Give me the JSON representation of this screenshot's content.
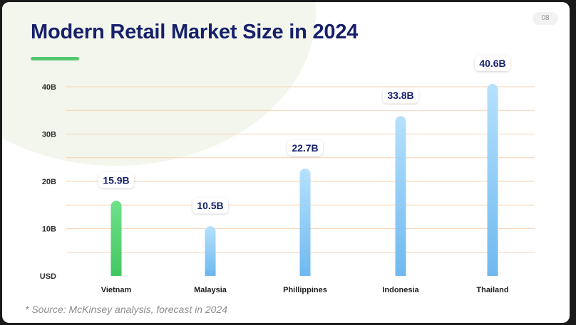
{
  "page_number": "08",
  "title": "Modern Retail Market Size in 2024",
  "footnote": "* Source: McKinsey analysis, forecast in 2024",
  "colors": {
    "title": "#16206b",
    "accent": "#54c86e",
    "highlight_bar": "#58d677",
    "bar": "#7fc4f3",
    "grid": "#f6d2b3"
  },
  "chart_data": {
    "type": "bar",
    "ylabel": "USD",
    "categories": [
      "Vietnam",
      "Malaysia",
      "Phillippines",
      "Indonesia",
      "Thailand"
    ],
    "values": [
      15.9,
      10.5,
      22.7,
      33.8,
      40.6
    ],
    "value_labels": [
      "15.9B",
      "10.5B",
      "22.7B",
      "33.8B",
      "40.6B"
    ],
    "highlight_index": 0,
    "ylim": [
      0,
      40
    ],
    "yticks": [
      {
        "value": 0,
        "label": "USD"
      },
      {
        "value": 10,
        "label": "10B"
      },
      {
        "value": 20,
        "label": "20B"
      },
      {
        "value": 30,
        "label": "30B"
      },
      {
        "value": 40,
        "label": "40B"
      }
    ],
    "grid": true,
    "grid_step": 5
  }
}
